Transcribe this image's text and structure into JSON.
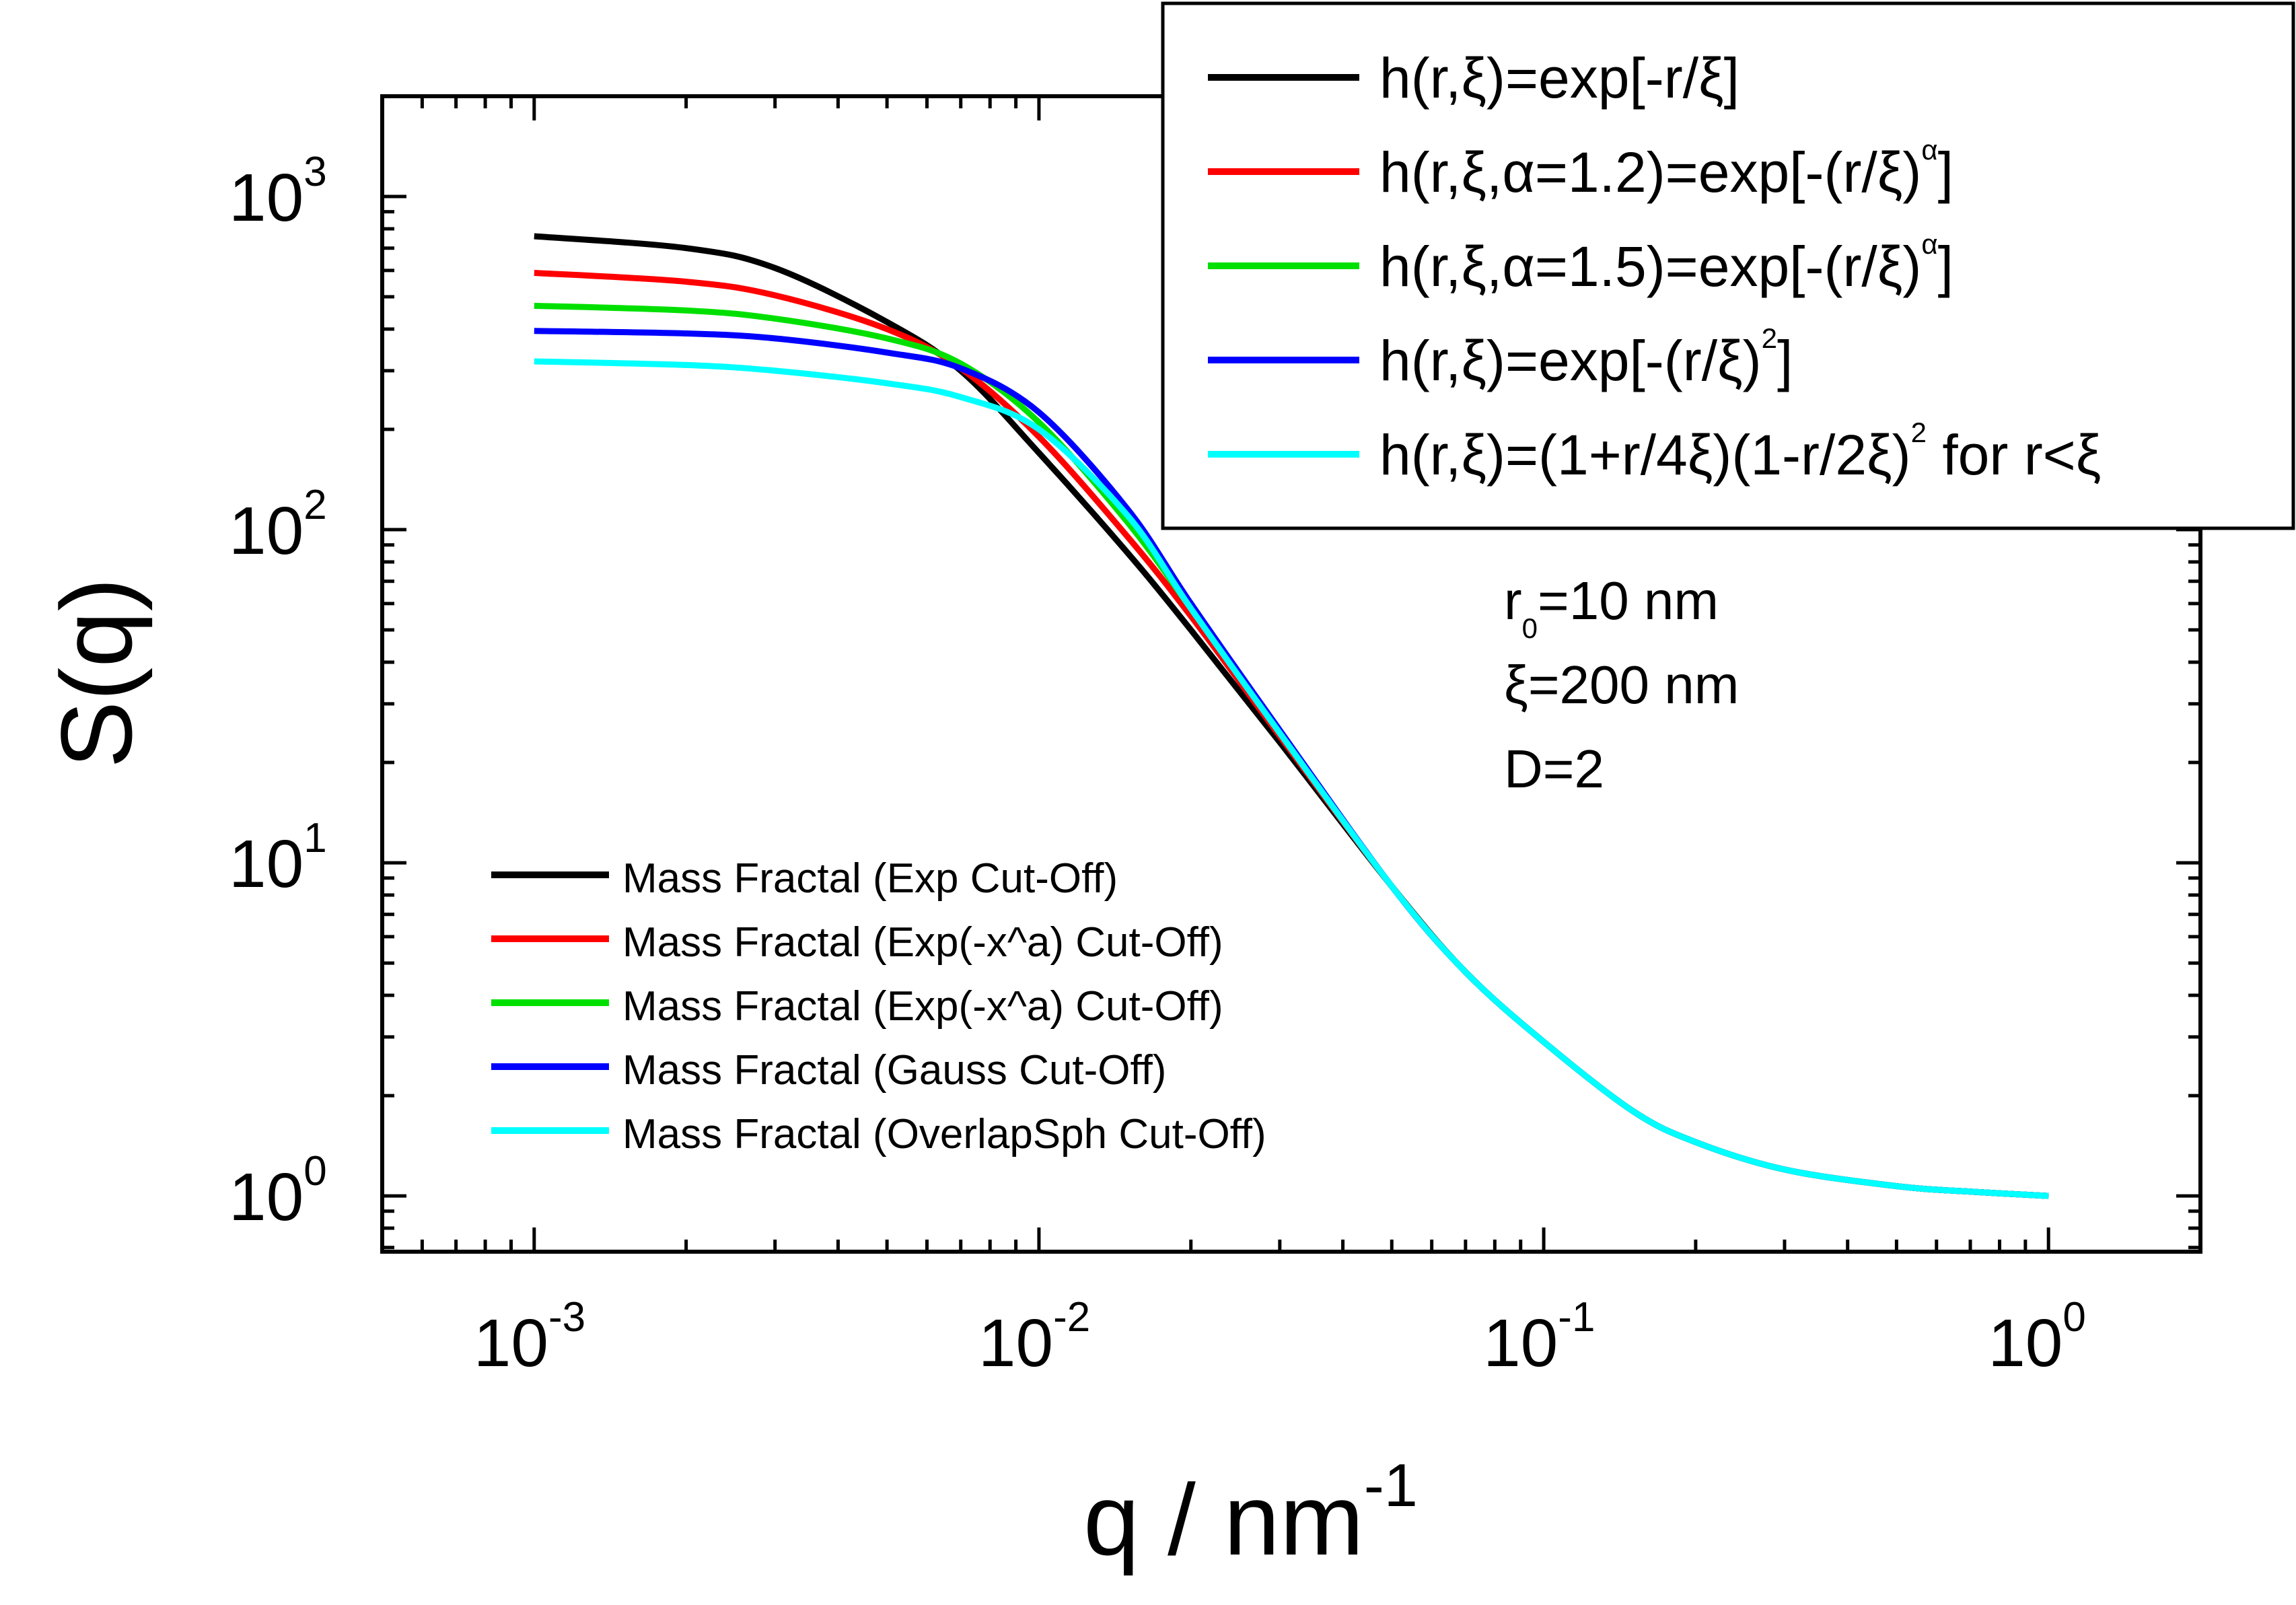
{
  "chart_data": {
    "type": "line",
    "xlabel": "q / nm",
    "xlabel_exp": "-1",
    "ylabel": "S(q)",
    "xscale": "log",
    "yscale": "log",
    "xlim": [
      0.0005,
      2.0
    ],
    "ylim": [
      0.68,
      2000
    ],
    "x_ticks": [
      {
        "value": 0.001,
        "base": "10",
        "exp": "-3"
      },
      {
        "value": 0.01,
        "base": "10",
        "exp": "-2"
      },
      {
        "value": 0.1,
        "base": "10",
        "exp": "-1"
      },
      {
        "value": 1,
        "base": "10",
        "exp": "0"
      }
    ],
    "y_ticks": [
      {
        "value": 1,
        "base": "10",
        "exp": "0"
      },
      {
        "value": 10,
        "base": "10",
        "exp": "1"
      },
      {
        "value": 100,
        "base": "10",
        "exp": "2"
      },
      {
        "value": 1000,
        "base": "10",
        "exp": "3"
      }
    ],
    "x": [
      0.001,
      0.002,
      0.003,
      0.005,
      0.007,
      0.01,
      0.015,
      0.02,
      0.03,
      0.05,
      0.07,
      0.1,
      0.15,
      0.2,
      0.3,
      0.5,
      0.7,
      1.0
    ],
    "series": [
      {
        "name": "Mass Fractal (Exp Cut-Off)",
        "color": "#000000",
        "values": [
          760,
          700,
          610,
          420,
          300,
          170,
          85,
          50,
          23,
          8.5,
          4.7,
          2.9,
          1.8,
          1.45,
          1.2,
          1.07,
          1.03,
          1.0
        ]
      },
      {
        "name": "Mass Fractal (Exp(-x^a) Cut-Off)",
        "color": "#ff0000",
        "values": [
          590,
          555,
          505,
          400,
          305,
          190,
          95,
          55,
          24,
          8.5,
          4.7,
          2.9,
          1.8,
          1.45,
          1.2,
          1.07,
          1.03,
          1.0
        ]
      },
      {
        "name": "Mass Fractal (Exp(-x^a) Cut-Off)",
        "color": "#00e000",
        "values": [
          470,
          455,
          430,
          375,
          315,
          210,
          105,
          58,
          24.5,
          8.5,
          4.7,
          2.9,
          1.8,
          1.45,
          1.2,
          1.07,
          1.03,
          1.0
        ]
      },
      {
        "name": "Mass Fractal (Gauss Cut-Off)",
        "color": "#0000ff",
        "values": [
          395,
          388,
          375,
          340,
          305,
          225,
          115,
          60,
          25,
          8.5,
          4.7,
          2.9,
          1.8,
          1.45,
          1.2,
          1.07,
          1.03,
          1.0
        ]
      },
      {
        "name": "Mass Fractal (OverlapSph Cut-Off)",
        "color": "#00ffff",
        "values": [
          320,
          312,
          300,
          275,
          250,
          200,
          110,
          58,
          24.5,
          8.5,
          4.7,
          2.9,
          1.8,
          1.45,
          1.2,
          1.07,
          1.03,
          1.0
        ]
      }
    ],
    "legend_bottom_left": {
      "entries": [
        {
          "label": "Mass Fractal (Exp Cut-Off)",
          "color": "#000000"
        },
        {
          "label": "Mass Fractal (Exp(-x^a) Cut-Off)",
          "color": "#ff0000"
        },
        {
          "label": "Mass Fractal (Exp(-x^a) Cut-Off)",
          "color": "#00e000"
        },
        {
          "label": "Mass Fractal (Gauss Cut-Off)",
          "color": "#0000ff"
        },
        {
          "label": "Mass Fractal (OverlapSph Cut-Off)",
          "color": "#00ffff"
        }
      ]
    },
    "legend_top_right": {
      "entries": [
        {
          "color": "#000000",
          "main": "h(r,ξ)=exp[-r/ξ]",
          "sup": "",
          "tail": ""
        },
        {
          "color": "#ff0000",
          "main": "h(r,ξ,α=1.2)=exp[-(r/ξ)",
          "sup": "α",
          "tail": "]"
        },
        {
          "color": "#00e000",
          "main": "h(r,ξ,α=1.5)=exp[-(r/ξ)",
          "sup": "α",
          "tail": "]"
        },
        {
          "color": "#0000ff",
          "main": "h(r,ξ)=exp[-(r/ξ)",
          "sup": "2",
          "tail": "]"
        },
        {
          "color": "#00ffff",
          "main": "h(r,ξ)=(1+r/4ξ)(1-r/2ξ)",
          "sup": "2",
          "tail": " for r<ξ"
        }
      ]
    },
    "annotations": [
      {
        "main": "r",
        "sub": "0",
        "tail": "=10 nm"
      },
      {
        "main": "ξ=200 nm",
        "sub": "",
        "tail": ""
      },
      {
        "main": "D=2",
        "sub": "",
        "tail": ""
      }
    ],
    "grid": false
  }
}
